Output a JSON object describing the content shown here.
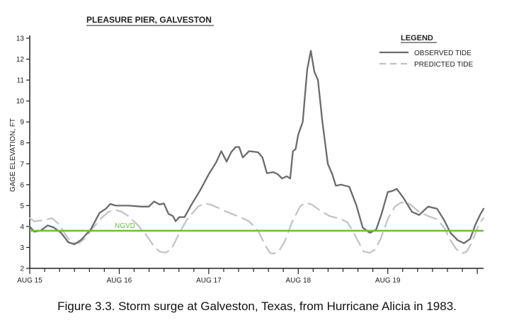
{
  "chart_data": {
    "type": "line",
    "title": "PLEASURE PIER, GALVESTON",
    "ylabel": "GAGE ELEVATION, FT",
    "xlabel": "",
    "ylim": [
      2,
      13
    ],
    "yticks": [
      2,
      3,
      4,
      5,
      6,
      7,
      8,
      9,
      10,
      11,
      12,
      13
    ],
    "xlim": [
      0,
      5.07
    ],
    "xticks": [
      {
        "label": "AUG 15",
        "x": 0
      },
      {
        "label": "AUG 16",
        "x": 1
      },
      {
        "label": "AUG 17",
        "x": 2
      },
      {
        "label": "AUG 18",
        "x": 3
      },
      {
        "label": "AUG 19",
        "x": 4
      }
    ],
    "minor_ticks_per_day": 6,
    "legend": {
      "title": "LEGEND",
      "position": "top-right",
      "entries": [
        {
          "label": "OBSERVED TIDE",
          "style": "solid",
          "color": "#6b6b6b"
        },
        {
          "label": "PREDICTED TIDE",
          "style": "dashed",
          "color": "#c2c2c2"
        }
      ]
    },
    "reference_line": {
      "label": "NGVD",
      "y": 3.8,
      "color": "#6bbf3a"
    },
    "series": [
      {
        "name": "OBSERVED TIDE",
        "style": "solid",
        "color": "#6b6b6b",
        "points": [
          [
            0,
            4.0
          ],
          [
            0.05,
            3.75
          ],
          [
            0.12,
            3.8
          ],
          [
            0.2,
            4.05
          ],
          [
            0.27,
            3.95
          ],
          [
            0.35,
            3.7
          ],
          [
            0.43,
            3.25
          ],
          [
            0.5,
            3.15
          ],
          [
            0.57,
            3.35
          ],
          [
            0.68,
            3.85
          ],
          [
            0.78,
            4.65
          ],
          [
            0.85,
            4.85
          ],
          [
            0.9,
            5.08
          ],
          [
            0.96,
            5.0
          ],
          [
            1.1,
            5.0
          ],
          [
            1.25,
            4.95
          ],
          [
            1.33,
            4.95
          ],
          [
            1.39,
            5.2
          ],
          [
            1.45,
            5.05
          ],
          [
            1.5,
            5.1
          ],
          [
            1.55,
            4.6
          ],
          [
            1.6,
            4.5
          ],
          [
            1.63,
            4.25
          ],
          [
            1.67,
            4.45
          ],
          [
            1.73,
            4.45
          ],
          [
            1.8,
            5.0
          ],
          [
            1.9,
            5.7
          ],
          [
            2.0,
            6.5
          ],
          [
            2.08,
            7.05
          ],
          [
            2.14,
            7.6
          ],
          [
            2.2,
            7.1
          ],
          [
            2.25,
            7.55
          ],
          [
            2.3,
            7.8
          ],
          [
            2.34,
            7.8
          ],
          [
            2.38,
            7.3
          ],
          [
            2.45,
            7.6
          ],
          [
            2.55,
            7.55
          ],
          [
            2.6,
            7.3
          ],
          [
            2.65,
            6.55
          ],
          [
            2.72,
            6.6
          ],
          [
            2.77,
            6.5
          ],
          [
            2.82,
            6.3
          ],
          [
            2.87,
            6.4
          ],
          [
            2.91,
            6.3
          ],
          [
            2.94,
            7.6
          ],
          [
            2.97,
            7.7
          ],
          [
            3.0,
            8.4
          ],
          [
            3.05,
            9.0
          ],
          [
            3.07,
            10.0
          ],
          [
            3.1,
            11.5
          ],
          [
            3.14,
            12.4
          ],
          [
            3.18,
            11.4
          ],
          [
            3.22,
            11.0
          ],
          [
            3.27,
            9.0
          ],
          [
            3.33,
            7.0
          ],
          [
            3.38,
            6.5
          ],
          [
            3.42,
            5.95
          ],
          [
            3.48,
            6.0
          ],
          [
            3.57,
            5.9
          ],
          [
            3.65,
            5.0
          ],
          [
            3.72,
            3.95
          ],
          [
            3.8,
            3.7
          ],
          [
            3.87,
            3.85
          ],
          [
            3.93,
            4.6
          ],
          [
            4.0,
            5.65
          ],
          [
            4.05,
            5.7
          ],
          [
            4.1,
            5.8
          ],
          [
            4.17,
            5.4
          ],
          [
            4.27,
            4.7
          ],
          [
            4.35,
            4.55
          ],
          [
            4.45,
            4.95
          ],
          [
            4.55,
            4.85
          ],
          [
            4.63,
            4.3
          ],
          [
            4.7,
            3.7
          ],
          [
            4.78,
            3.35
          ],
          [
            4.85,
            3.2
          ],
          [
            4.92,
            3.4
          ],
          [
            4.98,
            4.1
          ],
          [
            5.03,
            4.55
          ],
          [
            5.07,
            4.85
          ]
        ]
      },
      {
        "name": "PREDICTED TIDE",
        "style": "dashed",
        "color": "#c2c2c2",
        "points": [
          [
            0,
            4.4
          ],
          [
            0.05,
            4.25
          ],
          [
            0.15,
            4.3
          ],
          [
            0.25,
            4.4
          ],
          [
            0.33,
            4.1
          ],
          [
            0.4,
            3.6
          ],
          [
            0.47,
            3.2
          ],
          [
            0.55,
            3.2
          ],
          [
            0.62,
            3.45
          ],
          [
            0.7,
            3.9
          ],
          [
            0.8,
            4.4
          ],
          [
            0.88,
            4.7
          ],
          [
            0.95,
            4.8
          ],
          [
            1.03,
            4.7
          ],
          [
            1.1,
            4.5
          ],
          [
            1.2,
            4.1
          ],
          [
            1.3,
            3.6
          ],
          [
            1.38,
            3.1
          ],
          [
            1.45,
            2.8
          ],
          [
            1.52,
            2.75
          ],
          [
            1.58,
            2.9
          ],
          [
            1.65,
            3.5
          ],
          [
            1.75,
            4.3
          ],
          [
            1.88,
            4.95
          ],
          [
            1.95,
            5.1
          ],
          [
            2.02,
            5.05
          ],
          [
            2.1,
            4.9
          ],
          [
            2.2,
            4.7
          ],
          [
            2.35,
            4.45
          ],
          [
            2.45,
            4.25
          ],
          [
            2.55,
            3.8
          ],
          [
            2.62,
            3.2
          ],
          [
            2.68,
            2.75
          ],
          [
            2.72,
            2.7
          ],
          [
            2.78,
            2.8
          ],
          [
            2.85,
            3.3
          ],
          [
            2.93,
            4.2
          ],
          [
            3.02,
            4.95
          ],
          [
            3.08,
            5.15
          ],
          [
            3.15,
            5.05
          ],
          [
            3.25,
            4.75
          ],
          [
            3.35,
            4.5
          ],
          [
            3.48,
            4.35
          ],
          [
            3.55,
            4.2
          ],
          [
            3.62,
            3.7
          ],
          [
            3.68,
            3.2
          ],
          [
            3.73,
            2.8
          ],
          [
            3.8,
            2.75
          ],
          [
            3.86,
            2.9
          ],
          [
            3.92,
            3.4
          ],
          [
            4.0,
            4.35
          ],
          [
            4.08,
            4.95
          ],
          [
            4.15,
            5.15
          ],
          [
            4.22,
            5.15
          ],
          [
            4.28,
            4.95
          ],
          [
            4.35,
            4.7
          ],
          [
            4.45,
            4.5
          ],
          [
            4.55,
            4.35
          ],
          [
            4.63,
            3.95
          ],
          [
            4.7,
            3.35
          ],
          [
            4.76,
            2.95
          ],
          [
            4.82,
            2.7
          ],
          [
            4.88,
            2.8
          ],
          [
            4.93,
            3.15
          ],
          [
            4.98,
            3.7
          ],
          [
            5.03,
            4.2
          ],
          [
            5.07,
            4.4
          ]
        ]
      }
    ]
  },
  "caption": "Figure 3.3. Storm surge at Galveston, Texas, from Hurricane Alicia in 1983."
}
